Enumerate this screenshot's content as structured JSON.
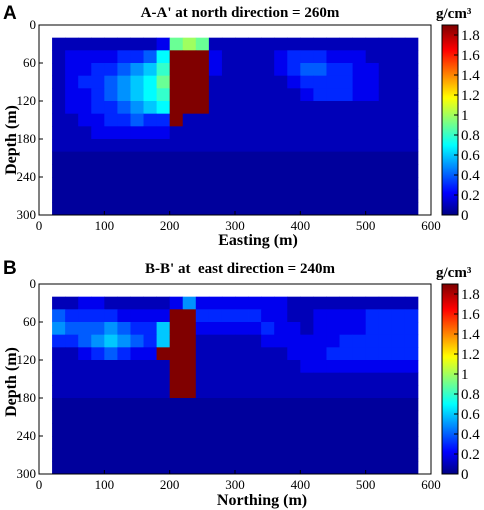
{
  "chart_data": [
    {
      "type": "heatmap",
      "panel": "A",
      "title": "A-A' at north direction = 260m",
      "xlabel": "Easting (m)",
      "ylabel": "Depth (m)",
      "xlim": [
        0,
        600
      ],
      "ylim": [
        300,
        0
      ],
      "xticks": [
        "0",
        "100",
        "200",
        "300",
        "400",
        "500",
        "600"
      ],
      "yticks": [
        "0",
        "60",
        "120",
        "180",
        "240",
        "300"
      ],
      "cell_x_step": 20,
      "cell_y_step": 20,
      "x_start": 20,
      "y_start": 20,
      "colorbar": {
        "unit": "g/cm³",
        "range": [
          0,
          1.9
        ],
        "ticks": [
          "0",
          "0.2",
          "0.4",
          "0.6",
          "0.8",
          "1",
          "1.2",
          "1.4",
          "1.6",
          "1.8"
        ]
      },
      "values": [
        [
          0.1,
          0.1,
          0.1,
          0.1,
          0.1,
          0.1,
          0.1,
          0.1,
          0.2,
          0.9,
          1.0,
          0.9,
          0.1,
          0.1,
          0.1,
          0.1,
          0.1,
          0.1,
          0.1,
          0.1,
          0.1,
          0.1,
          0.1,
          0.1,
          0.1,
          0.1,
          0.1,
          0.1
        ],
        [
          0.1,
          0.2,
          0.2,
          0.2,
          0.2,
          0.3,
          0.3,
          0.4,
          0.7,
          1.9,
          1.9,
          1.9,
          0.2,
          0.1,
          0.1,
          0.1,
          0.1,
          0.2,
          0.3,
          0.3,
          0.3,
          0.2,
          0.2,
          0.2,
          0.1,
          0.1,
          0.1,
          0.1
        ],
        [
          0.1,
          0.2,
          0.2,
          0.3,
          0.3,
          0.4,
          0.5,
          0.6,
          0.8,
          1.9,
          1.9,
          1.9,
          0.2,
          0.1,
          0.1,
          0.1,
          0.1,
          0.2,
          0.3,
          0.4,
          0.4,
          0.3,
          0.3,
          0.2,
          0.2,
          0.1,
          0.1,
          0.1
        ],
        [
          0.1,
          0.2,
          0.3,
          0.3,
          0.4,
          0.5,
          0.6,
          0.7,
          0.9,
          1.9,
          1.9,
          1.9,
          0.1,
          0.1,
          0.1,
          0.1,
          0.1,
          0.1,
          0.2,
          0.3,
          0.3,
          0.3,
          0.3,
          0.2,
          0.2,
          0.1,
          0.1,
          0.1
        ],
        [
          0.1,
          0.2,
          0.2,
          0.3,
          0.4,
          0.5,
          0.6,
          0.7,
          0.8,
          1.9,
          1.9,
          1.9,
          0.1,
          0.1,
          0.1,
          0.1,
          0.1,
          0.1,
          0.1,
          0.2,
          0.3,
          0.3,
          0.3,
          0.2,
          0.2,
          0.1,
          0.1,
          0.1
        ],
        [
          0.1,
          0.2,
          0.2,
          0.3,
          0.3,
          0.4,
          0.5,
          0.6,
          0.7,
          1.9,
          1.9,
          1.9,
          0.1,
          0.1,
          0.1,
          0.1,
          0.1,
          0.1,
          0.1,
          0.1,
          0.1,
          0.1,
          0.1,
          0.1,
          0.1,
          0.1,
          0.1,
          0.1
        ],
        [
          0.1,
          0.1,
          0.2,
          0.2,
          0.3,
          0.3,
          0.4,
          0.3,
          0.3,
          1.9,
          0.1,
          0.1,
          0.1,
          0.1,
          0.1,
          0.1,
          0.1,
          0.1,
          0.1,
          0.1,
          0.1,
          0.1,
          0.1,
          0.1,
          0.1,
          0.1,
          0.1,
          0.1
        ],
        [
          0.1,
          0.1,
          0.1,
          0.2,
          0.2,
          0.2,
          0.2,
          0.2,
          0.2,
          0.1,
          0.1,
          0.1,
          0.1,
          0.1,
          0.1,
          0.1,
          0.1,
          0.1,
          0.1,
          0.1,
          0.1,
          0.1,
          0.1,
          0.1,
          0.1,
          0.1,
          0.1,
          0.1
        ],
        [
          0.1,
          0.1,
          0.1,
          0.1,
          0.1,
          0.1,
          0.1,
          0.1,
          0.1,
          0.1,
          0.1,
          0.1,
          0.1,
          0.1,
          0.1,
          0.1,
          0.1,
          0.1,
          0.1,
          0.1,
          0.1,
          0.1,
          0.1,
          0.1,
          0.1,
          0.1,
          0.1,
          0.1
        ],
        [
          0.05,
          0.05,
          0.05,
          0.05,
          0.05,
          0.05,
          0.05,
          0.05,
          0.05,
          0.05,
          0.05,
          0.05,
          0.05,
          0.05,
          0.05,
          0.05,
          0.05,
          0.05,
          0.05,
          0.05,
          0.05,
          0.05,
          0.05,
          0.05,
          0.05,
          0.05,
          0.05,
          0.05
        ],
        [
          0.05,
          0.05,
          0.05,
          0.05,
          0.05,
          0.05,
          0.05,
          0.05,
          0.05,
          0.05,
          0.05,
          0.05,
          0.05,
          0.05,
          0.05,
          0.05,
          0.05,
          0.05,
          0.05,
          0.05,
          0.05,
          0.05,
          0.05,
          0.05,
          0.05,
          0.05,
          0.05,
          0.05
        ],
        [
          0.05,
          0.05,
          0.05,
          0.05,
          0.05,
          0.05,
          0.05,
          0.05,
          0.05,
          0.05,
          0.05,
          0.05,
          0.05,
          0.05,
          0.05,
          0.05,
          0.05,
          0.05,
          0.05,
          0.05,
          0.05,
          0.05,
          0.05,
          0.05,
          0.05,
          0.05,
          0.05,
          0.05
        ],
        [
          0.05,
          0.05,
          0.05,
          0.05,
          0.05,
          0.05,
          0.05,
          0.05,
          0.05,
          0.05,
          0.05,
          0.05,
          0.05,
          0.05,
          0.05,
          0.05,
          0.05,
          0.05,
          0.05,
          0.05,
          0.05,
          0.05,
          0.05,
          0.05,
          0.05,
          0.05,
          0.05,
          0.05
        ],
        [
          0.05,
          0.05,
          0.05,
          0.05,
          0.05,
          0.05,
          0.05,
          0.05,
          0.05,
          0.05,
          0.05,
          0.05,
          0.05,
          0.05,
          0.05,
          0.05,
          0.05,
          0.05,
          0.05,
          0.05,
          0.05,
          0.05,
          0.05,
          0.05,
          0.05,
          0.05,
          0.05,
          0.05
        ]
      ]
    },
    {
      "type": "heatmap",
      "panel": "B",
      "title": "B-B' at  east direction = 240m",
      "xlabel": "Northing (m)",
      "ylabel": "Depth (m)",
      "xlim": [
        0,
        600
      ],
      "ylim": [
        300,
        0
      ],
      "xticks": [
        "0",
        "100",
        "200",
        "300",
        "400",
        "500",
        "600"
      ],
      "yticks": [
        "0",
        "60",
        "120",
        "180",
        "240",
        "300"
      ],
      "cell_x_step": 20,
      "cell_y_step": 20,
      "x_start": 20,
      "y_start": 20,
      "colorbar": {
        "unit": "g/cm³",
        "range": [
          0,
          1.9
        ],
        "ticks": [
          "0",
          "0.2",
          "0.4",
          "0.6",
          "0.8",
          "1",
          "1.2",
          "1.4",
          "1.6",
          "1.8"
        ]
      },
      "values": [
        [
          0.1,
          0.1,
          0.2,
          0.2,
          0.1,
          0.1,
          0.1,
          0.1,
          0.1,
          0.2,
          0.5,
          0.2,
          0.2,
          0.2,
          0.2,
          0.2,
          0.2,
          0.2,
          0.1,
          0.1,
          0.1,
          0.1,
          0.1,
          0.1,
          0.1,
          0.1,
          0.1,
          0.1
        ],
        [
          0.4,
          0.3,
          0.3,
          0.3,
          0.3,
          0.2,
          0.2,
          0.2,
          0.2,
          1.9,
          1.9,
          0.3,
          0.3,
          0.3,
          0.3,
          0.3,
          0.2,
          0.2,
          0.1,
          0.1,
          0.2,
          0.2,
          0.2,
          0.2,
          0.3,
          0.3,
          0.3,
          0.3
        ],
        [
          0.5,
          0.4,
          0.4,
          0.4,
          0.5,
          0.4,
          0.3,
          0.3,
          0.6,
          1.9,
          1.9,
          0.2,
          0.2,
          0.2,
          0.2,
          0.2,
          0.3,
          0.2,
          0.2,
          0.1,
          0.2,
          0.2,
          0.2,
          0.2,
          0.3,
          0.3,
          0.3,
          0.3
        ],
        [
          0.3,
          0.3,
          0.4,
          0.5,
          0.6,
          0.5,
          0.4,
          0.3,
          0.6,
          1.9,
          1.9,
          0.1,
          0.1,
          0.1,
          0.1,
          0.1,
          0.2,
          0.2,
          0.2,
          0.2,
          0.2,
          0.2,
          0.3,
          0.3,
          0.3,
          0.3,
          0.3,
          0.3
        ],
        [
          0.1,
          0.1,
          0.2,
          0.3,
          0.4,
          0.3,
          0.2,
          0.2,
          1.9,
          1.9,
          1.9,
          0.1,
          0.1,
          0.1,
          0.1,
          0.1,
          0.1,
          0.1,
          0.2,
          0.2,
          0.2,
          0.3,
          0.3,
          0.3,
          0.3,
          0.3,
          0.3,
          0.3
        ],
        [
          0.1,
          0.1,
          0.1,
          0.1,
          0.1,
          0.1,
          0.1,
          0.1,
          0.1,
          1.9,
          1.9,
          0.1,
          0.1,
          0.1,
          0.1,
          0.1,
          0.1,
          0.1,
          0.1,
          0.2,
          0.2,
          0.2,
          0.2,
          0.2,
          0.2,
          0.2,
          0.2,
          0.2
        ],
        [
          0.1,
          0.1,
          0.1,
          0.1,
          0.1,
          0.1,
          0.1,
          0.1,
          0.1,
          1.9,
          1.9,
          0.1,
          0.1,
          0.1,
          0.1,
          0.1,
          0.1,
          0.1,
          0.1,
          0.1,
          0.1,
          0.1,
          0.1,
          0.1,
          0.1,
          0.1,
          0.1,
          0.1
        ],
        [
          0.1,
          0.1,
          0.1,
          0.1,
          0.1,
          0.1,
          0.1,
          0.1,
          0.1,
          1.9,
          1.9,
          0.1,
          0.1,
          0.1,
          0.1,
          0.1,
          0.1,
          0.1,
          0.1,
          0.1,
          0.1,
          0.1,
          0.1,
          0.1,
          0.1,
          0.1,
          0.1,
          0.1
        ],
        [
          0.05,
          0.05,
          0.05,
          0.05,
          0.05,
          0.05,
          0.05,
          0.05,
          0.05,
          0.05,
          0.05,
          0.05,
          0.05,
          0.05,
          0.05,
          0.05,
          0.05,
          0.05,
          0.05,
          0.05,
          0.05,
          0.05,
          0.05,
          0.05,
          0.05,
          0.05,
          0.05,
          0.05
        ],
        [
          0.05,
          0.05,
          0.05,
          0.05,
          0.05,
          0.05,
          0.05,
          0.05,
          0.05,
          0.05,
          0.05,
          0.05,
          0.05,
          0.05,
          0.05,
          0.05,
          0.05,
          0.05,
          0.05,
          0.05,
          0.05,
          0.05,
          0.05,
          0.05,
          0.05,
          0.05,
          0.05,
          0.05
        ],
        [
          0.05,
          0.05,
          0.05,
          0.05,
          0.05,
          0.05,
          0.05,
          0.05,
          0.05,
          0.05,
          0.05,
          0.05,
          0.05,
          0.05,
          0.05,
          0.05,
          0.05,
          0.05,
          0.05,
          0.05,
          0.05,
          0.05,
          0.05,
          0.05,
          0.05,
          0.05,
          0.05,
          0.05
        ],
        [
          0.05,
          0.05,
          0.05,
          0.05,
          0.05,
          0.05,
          0.05,
          0.05,
          0.05,
          0.05,
          0.05,
          0.05,
          0.05,
          0.05,
          0.05,
          0.05,
          0.05,
          0.05,
          0.05,
          0.05,
          0.05,
          0.05,
          0.05,
          0.05,
          0.05,
          0.05,
          0.05,
          0.05
        ],
        [
          0.05,
          0.05,
          0.05,
          0.05,
          0.05,
          0.05,
          0.05,
          0.05,
          0.05,
          0.05,
          0.05,
          0.05,
          0.05,
          0.05,
          0.05,
          0.05,
          0.05,
          0.05,
          0.05,
          0.05,
          0.05,
          0.05,
          0.05,
          0.05,
          0.05,
          0.05,
          0.05,
          0.05
        ],
        [
          0.05,
          0.05,
          0.05,
          0.05,
          0.05,
          0.05,
          0.05,
          0.05,
          0.05,
          0.05,
          0.05,
          0.05,
          0.05,
          0.05,
          0.05,
          0.05,
          0.05,
          0.05,
          0.05,
          0.05,
          0.05,
          0.05,
          0.05,
          0.05,
          0.05,
          0.05,
          0.05,
          0.05
        ]
      ]
    }
  ]
}
